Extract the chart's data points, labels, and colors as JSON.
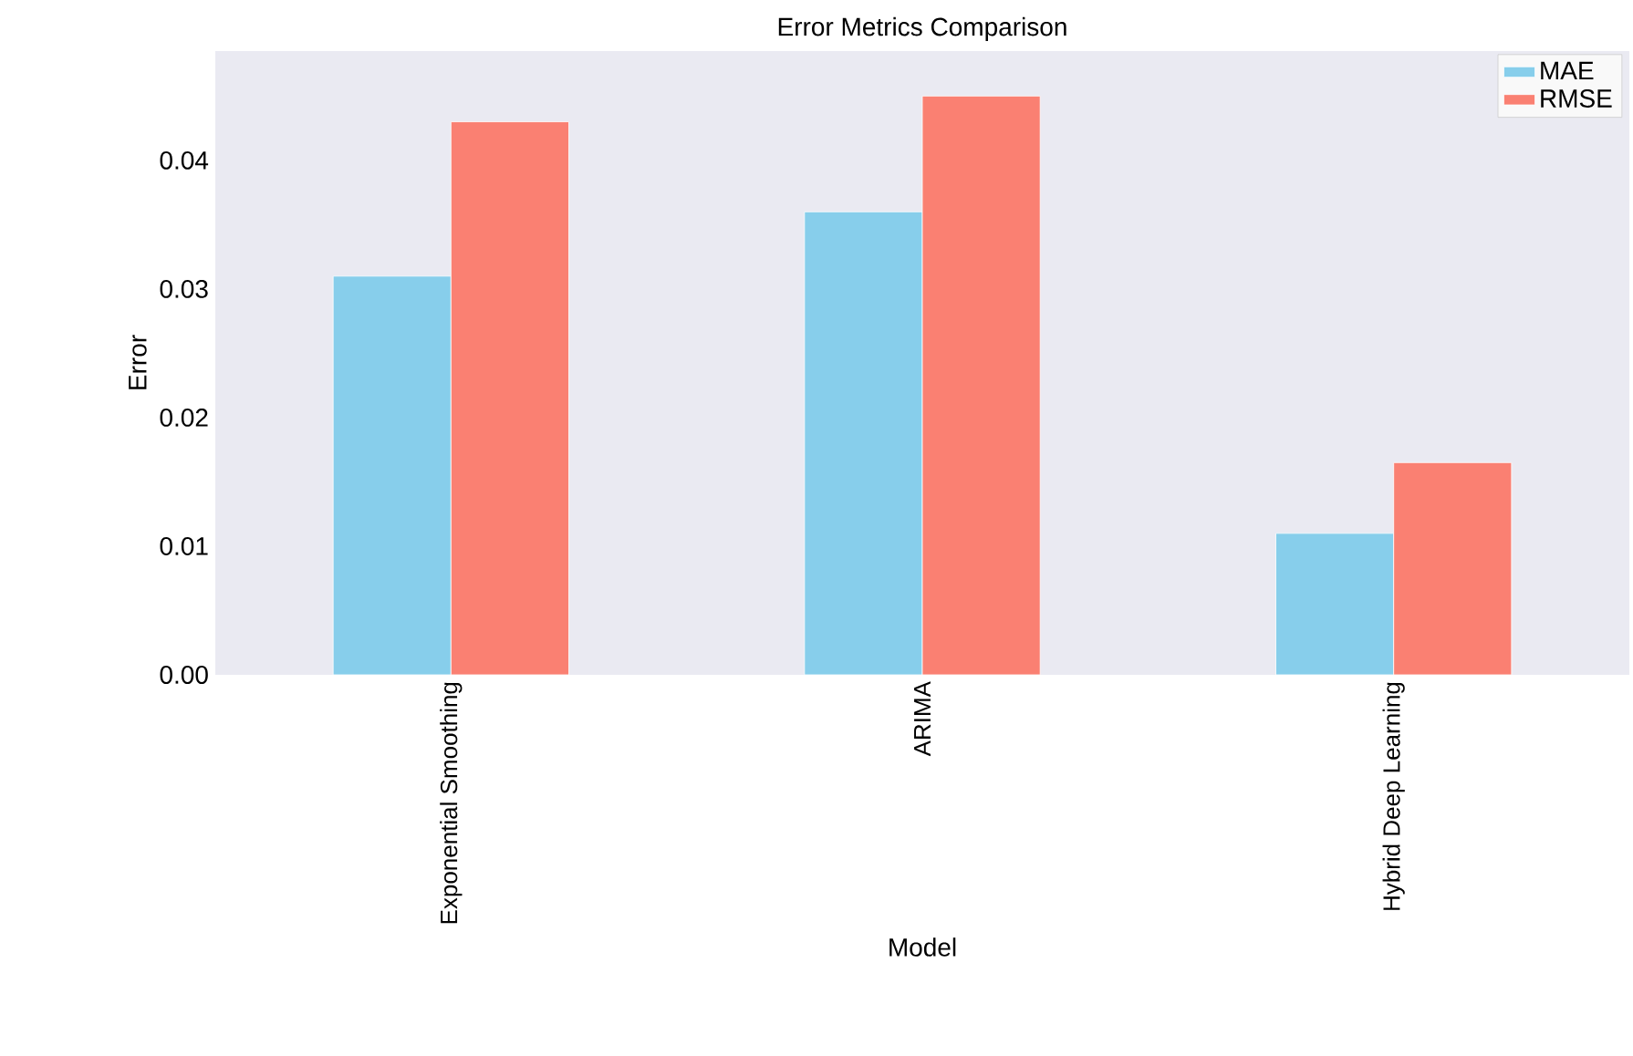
{
  "chart_data": {
    "type": "bar",
    "title": "Error Metrics Comparison",
    "xlabel": "Model",
    "ylabel": "Error",
    "categories": [
      "Exponential Smoothing",
      "ARIMA",
      "Hybrid Deep Learning"
    ],
    "series": [
      {
        "name": "MAE",
        "color": "#87ceeb",
        "values": [
          0.031,
          0.036,
          0.011
        ]
      },
      {
        "name": "RMSE",
        "color": "#fa8072",
        "values": [
          0.043,
          0.045,
          0.0165
        ]
      }
    ],
    "ylim": [
      0,
      0.0485
    ],
    "yticks": [
      {
        "value": 0,
        "label": "0.00"
      },
      {
        "value": 0.01,
        "label": "0.01"
      },
      {
        "value": 0.02,
        "label": "0.02"
      },
      {
        "value": 0.03,
        "label": "0.03"
      },
      {
        "value": 0.04,
        "label": "0.04"
      }
    ],
    "legend": "top right",
    "grid": false
  }
}
